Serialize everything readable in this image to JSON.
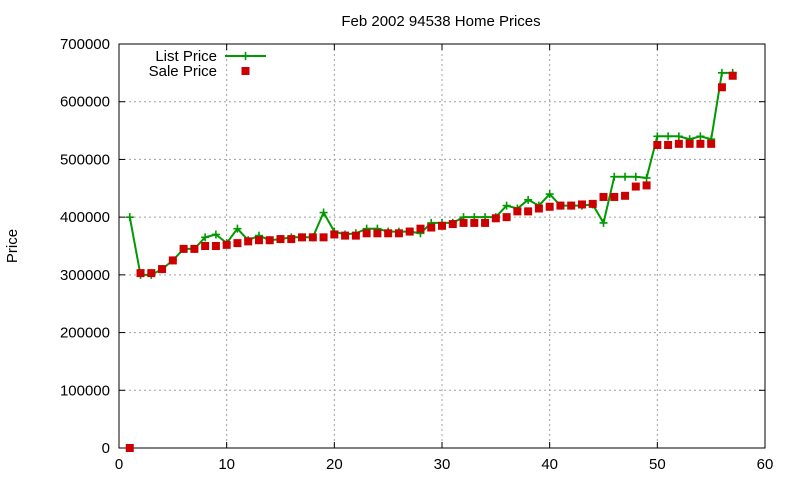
{
  "chart_data": {
    "type": "line",
    "title": "Feb 2002 94538 Home Prices",
    "xlabel": "",
    "ylabel": "Price",
    "xlim": [
      0,
      60
    ],
    "ylim": [
      0,
      700000
    ],
    "x_ticks": [
      0,
      10,
      20,
      30,
      40,
      50,
      60
    ],
    "y_ticks": [
      0,
      100000,
      200000,
      300000,
      400000,
      500000,
      600000,
      700000
    ],
    "grid": true,
    "legend_position": "top-left",
    "series": [
      {
        "name": "List Price",
        "style": "line-with-plus-markers",
        "color": "#009900",
        "x": [
          1,
          2,
          3,
          4,
          5,
          6,
          7,
          8,
          9,
          10,
          11,
          12,
          13,
          14,
          15,
          16,
          17,
          18,
          19,
          20,
          21,
          22,
          23,
          24,
          25,
          26,
          27,
          28,
          29,
          30,
          31,
          32,
          33,
          34,
          35,
          36,
          37,
          38,
          39,
          40,
          41,
          42,
          43,
          44,
          45,
          46,
          47,
          48,
          49,
          50,
          51,
          52,
          53,
          54,
          55,
          56,
          57
        ],
        "values": [
          400000,
          300000,
          300000,
          310000,
          325000,
          345000,
          345000,
          365000,
          370000,
          355000,
          380000,
          360000,
          368000,
          360000,
          362000,
          365000,
          365000,
          365000,
          408000,
          375000,
          370000,
          372000,
          380000,
          380000,
          375000,
          375000,
          375000,
          372000,
          390000,
          390000,
          390000,
          400000,
          400000,
          400000,
          400000,
          420000,
          415000,
          430000,
          420000,
          440000,
          420000,
          420000,
          420000,
          422000,
          390000,
          470000,
          470000,
          470000,
          468000,
          540000,
          540000,
          540000,
          535000,
          540000,
          535000,
          650000,
          650000
        ]
      },
      {
        "name": "Sale Price",
        "style": "square-markers",
        "color": "#cc0000",
        "x": [
          1,
          2,
          3,
          4,
          5,
          6,
          7,
          8,
          9,
          10,
          11,
          12,
          13,
          14,
          15,
          16,
          17,
          18,
          19,
          20,
          21,
          22,
          23,
          24,
          25,
          26,
          27,
          28,
          29,
          30,
          31,
          32,
          33,
          34,
          35,
          36,
          37,
          38,
          39,
          40,
          41,
          42,
          43,
          44,
          45,
          46,
          47,
          48,
          49,
          50,
          51,
          52,
          53,
          54,
          55,
          56,
          57
        ],
        "values": [
          0,
          303000,
          303000,
          310000,
          325000,
          345000,
          345000,
          350000,
          350000,
          352000,
          355000,
          358000,
          360000,
          360000,
          362000,
          362000,
          365000,
          365000,
          365000,
          370000,
          368000,
          368000,
          372000,
          372000,
          372000,
          372000,
          375000,
          380000,
          382000,
          385000,
          388000,
          390000,
          390000,
          390000,
          398000,
          400000,
          410000,
          410000,
          415000,
          418000,
          420000,
          420000,
          422000,
          423000,
          435000,
          435000,
          437000,
          453000,
          455000,
          525000,
          525000,
          527000,
          527000,
          527000,
          527000,
          625000,
          645000
        ]
      }
    ]
  }
}
